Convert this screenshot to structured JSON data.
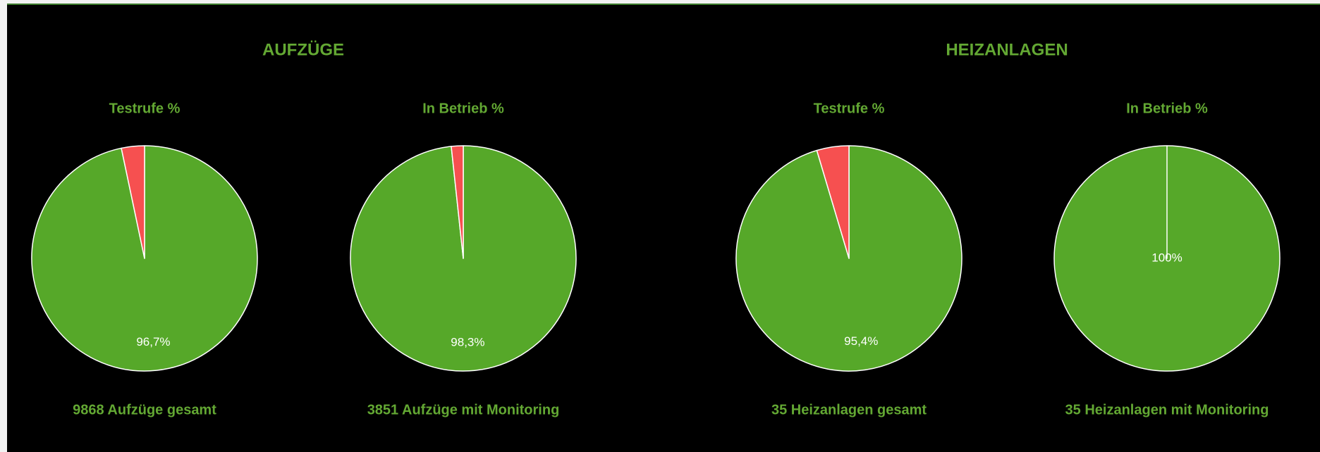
{
  "sections": [
    {
      "title": "AUFZÜGE"
    },
    {
      "title": "HEIZANLAGEN"
    }
  ],
  "chart_data": [
    {
      "type": "pie",
      "title": "Testrufe %",
      "values": [
        96.7,
        3.3
      ],
      "value_labels": [
        "96,7%",
        null
      ],
      "colors": [
        "#56a829",
        "#f65050"
      ],
      "footnote": "9868 Aufzüge gesamt"
    },
    {
      "type": "pie",
      "title": "In Betrieb %",
      "values": [
        98.3,
        1.7
      ],
      "value_labels": [
        "98,3%",
        null
      ],
      "colors": [
        "#56a829",
        "#f65050"
      ],
      "footnote": "3851 Aufzüge mit Monitoring"
    },
    {
      "type": "pie",
      "title": "Testrufe %",
      "values": [
        95.4,
        4.6
      ],
      "value_labels": [
        "95,4%",
        null
      ],
      "colors": [
        "#56a829",
        "#f65050"
      ],
      "footnote": "35 Heizanlagen gesamt"
    },
    {
      "type": "pie",
      "title": "In Betrieb %",
      "values": [
        100,
        0
      ],
      "value_labels": [
        "100%",
        null
      ],
      "colors": [
        "#56a829",
        "#f65050"
      ],
      "footnote": "35 Heizanlagen mit Monitoring"
    }
  ]
}
